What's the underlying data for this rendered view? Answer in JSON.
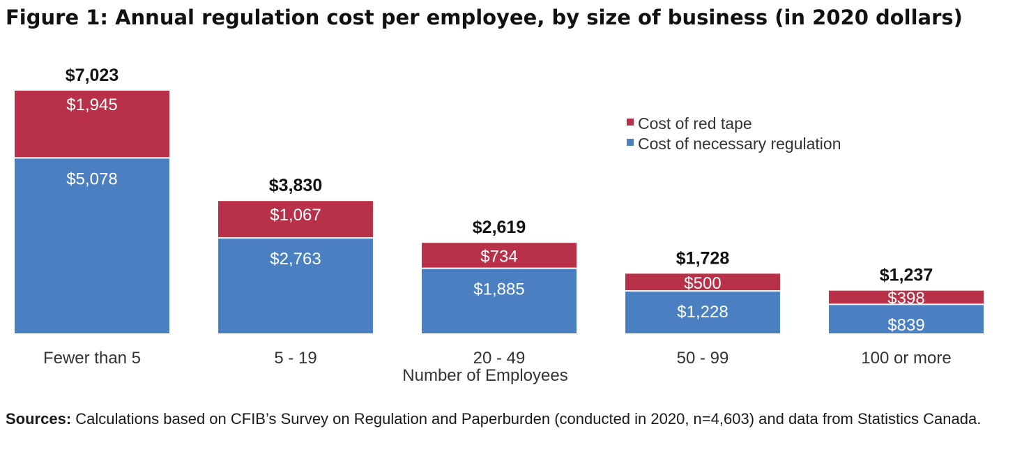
{
  "title": "Figure 1: Annual regulation cost per employee, by size of business (in 2020 dollars)",
  "sources": {
    "label": "Sources:",
    "text": "Calculations based on CFIB’s Survey on Regulation and Paperburden (conducted in 2020, n=4,603) and data from Statistics Canada."
  },
  "colors": {
    "red_tape": "#b93148",
    "necessary": "#4a80c1",
    "total_label": "#111111",
    "bar_label": "#ffffff",
    "axis_text": "#333333"
  },
  "chart_data": {
    "type": "bar",
    "stacked": true,
    "title": "Figure 1: Annual regulation cost per employee, by size of business (in 2020 dollars)",
    "xlabel": "Number of Employees",
    "ylabel": "",
    "categories": [
      "Fewer than 5",
      "5 - 19",
      "20 - 49",
      "50 - 99",
      "100 or more"
    ],
    "series": [
      {
        "name": "Cost of necessary regulation",
        "color": "#4a80c1",
        "values": [
          5078,
          2763,
          1885,
          1228,
          839
        ],
        "labels": [
          "$5,078",
          "$2,763",
          "$1,885",
          "$1,228",
          "$839"
        ]
      },
      {
        "name": "Cost of red tape",
        "color": "#b93148",
        "values": [
          1945,
          1067,
          734,
          500,
          398
        ],
        "labels": [
          "$1,945",
          "$1,067",
          "$734",
          "$500",
          "$398"
        ]
      }
    ],
    "totals": [
      7023,
      3830,
      2619,
      1728,
      1237
    ],
    "total_labels": [
      "$7,023",
      "$3,830",
      "$2,619",
      "$1,728",
      "$1,237"
    ],
    "legend": {
      "placement": "top-right",
      "entries": [
        "Cost of red tape",
        "Cost of necessary regulation"
      ]
    },
    "ylim": [
      0,
      7023
    ],
    "grid": false
  }
}
